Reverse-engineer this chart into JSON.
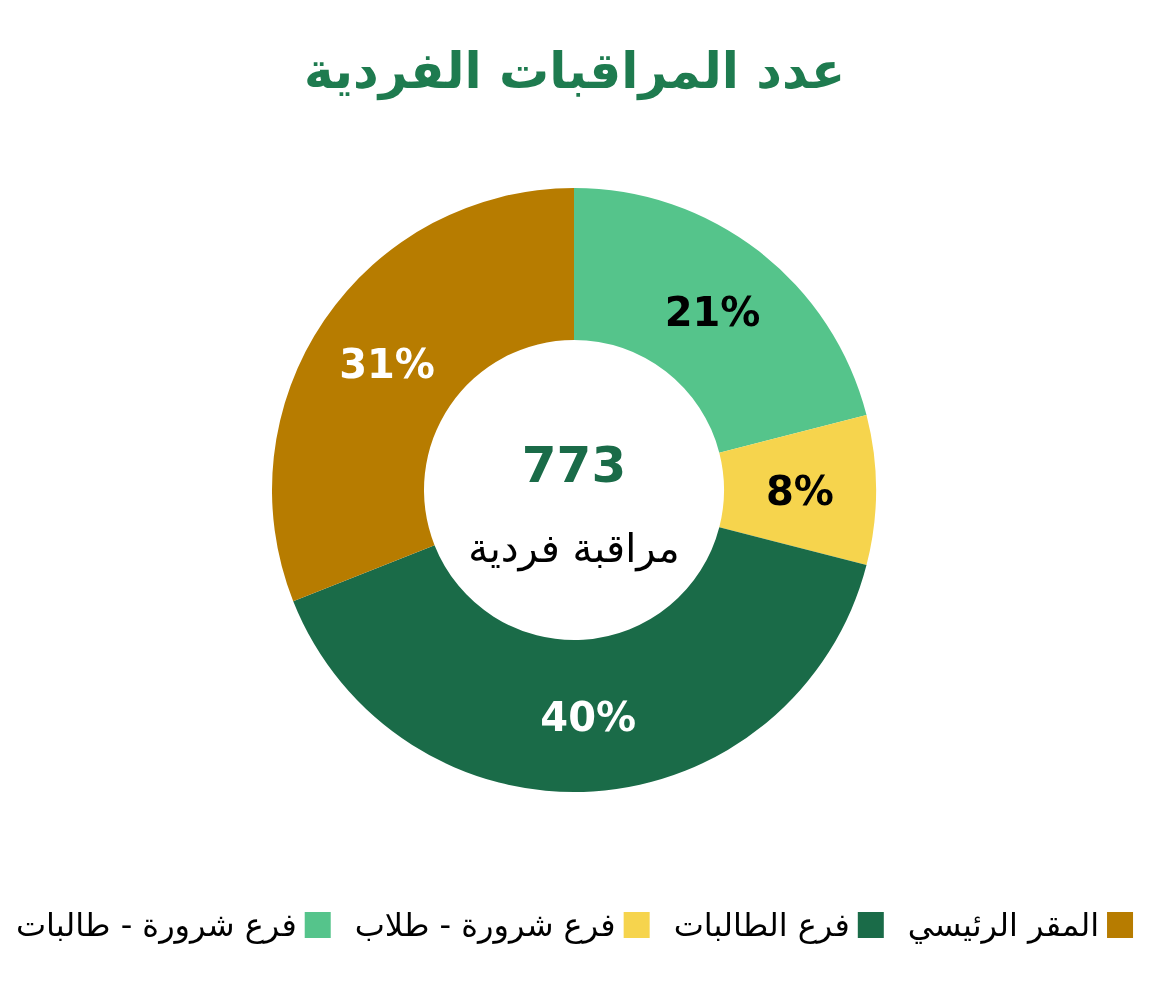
{
  "chart_data": {
    "type": "donut",
    "title": "عدد المراقبات الفردية",
    "categories": [
      "فرع شرورة - طالبات",
      "فرع شرورة - طلاب",
      "فرع الطالبات",
      "المقر الرئيسي"
    ],
    "values": [
      21,
      8,
      40,
      31
    ],
    "colors": [
      "#55c48b",
      "#f6d44d",
      "#1a6b48",
      "#b77c00"
    ],
    "value_labels": [
      "21%",
      "8%",
      "40%",
      "31%"
    ],
    "legend": "bottom",
    "annotations": [
      "773",
      "مراقبة فردية"
    ]
  }
}
